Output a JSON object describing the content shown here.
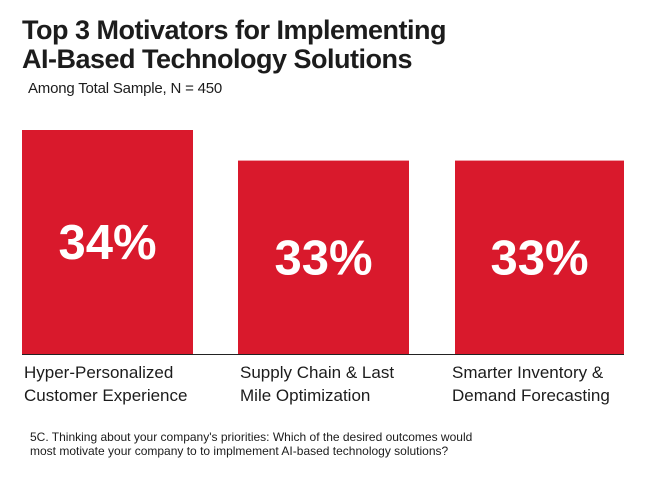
{
  "header": {
    "title_line1": "Top 3 Motivators for Implementing",
    "title_line2": "AI-Based Technology Solutions",
    "subtitle": "Among Total Sample, N = 450"
  },
  "footnote": {
    "line1": "5C. Thinking about your company's priorities: Which of the desired outcomes would",
    "line2": "most motivate your company to to implmement AI-based technology solutions?"
  },
  "colors": {
    "bar": "#d9192c",
    "label": "#ffffff",
    "axis": "#222222",
    "text": "#1c1c1c"
  },
  "chart_data": {
    "type": "bar",
    "title": "Top 3 Motivators for Implementing AI-Based Technology Solutions",
    "subtitle": "Among Total Sample, N = 450",
    "categories": [
      [
        "Hyper-Personalized",
        "Customer Experience"
      ],
      [
        "Supply Chain & Last",
        "Mile Optimization"
      ],
      [
        "Smarter Inventory &",
        "Demand Forecasting"
      ]
    ],
    "values": [
      34,
      33,
      33
    ],
    "data_labels": [
      "34%",
      "33%",
      "33%"
    ],
    "unit": "%",
    "xlabel": "",
    "ylabel": "",
    "grid": false
  }
}
